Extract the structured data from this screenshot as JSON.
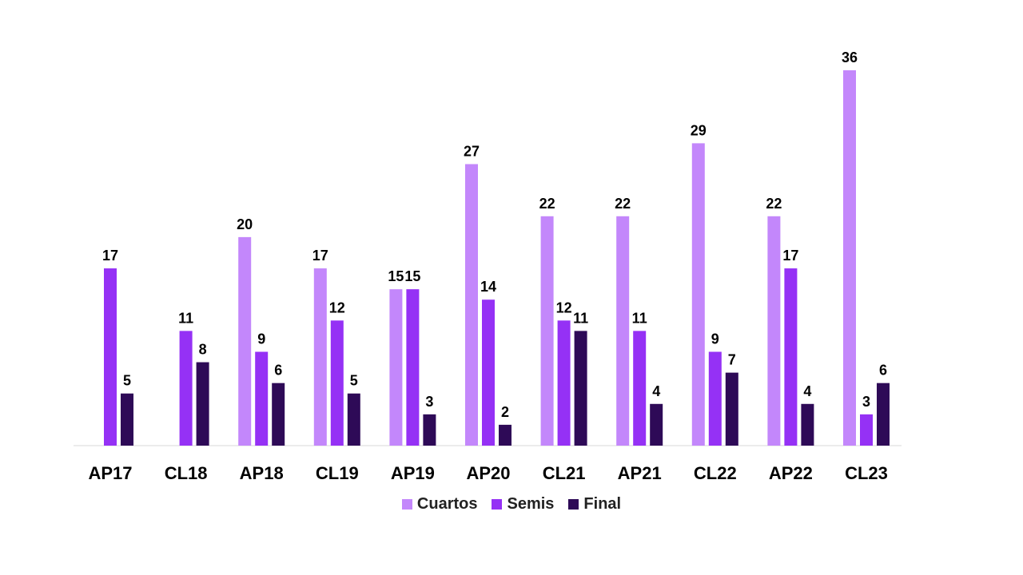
{
  "chart_data": {
    "type": "bar",
    "categories": [
      "AP17",
      "CL18",
      "AP18",
      "CL19",
      "AP19",
      "AP20",
      "CL21",
      "AP21",
      "CL22",
      "AP22",
      "CL23"
    ],
    "series": [
      {
        "name": "Cuartos",
        "color": "#c387fb",
        "values": [
          null,
          null,
          20,
          17,
          15,
          27,
          22,
          22,
          29,
          22,
          36
        ]
      },
      {
        "name": "Semis",
        "color": "#9531f5",
        "values": [
          17,
          11,
          9,
          12,
          15,
          14,
          12,
          11,
          9,
          17,
          3
        ]
      },
      {
        "name": "Final",
        "color": "#2e0a57",
        "values": [
          5,
          8,
          6,
          5,
          3,
          2,
          11,
          4,
          7,
          4,
          6
        ]
      }
    ],
    "ylim": [
      0,
      36
    ],
    "grid": false,
    "legend_position": "bottom"
  }
}
